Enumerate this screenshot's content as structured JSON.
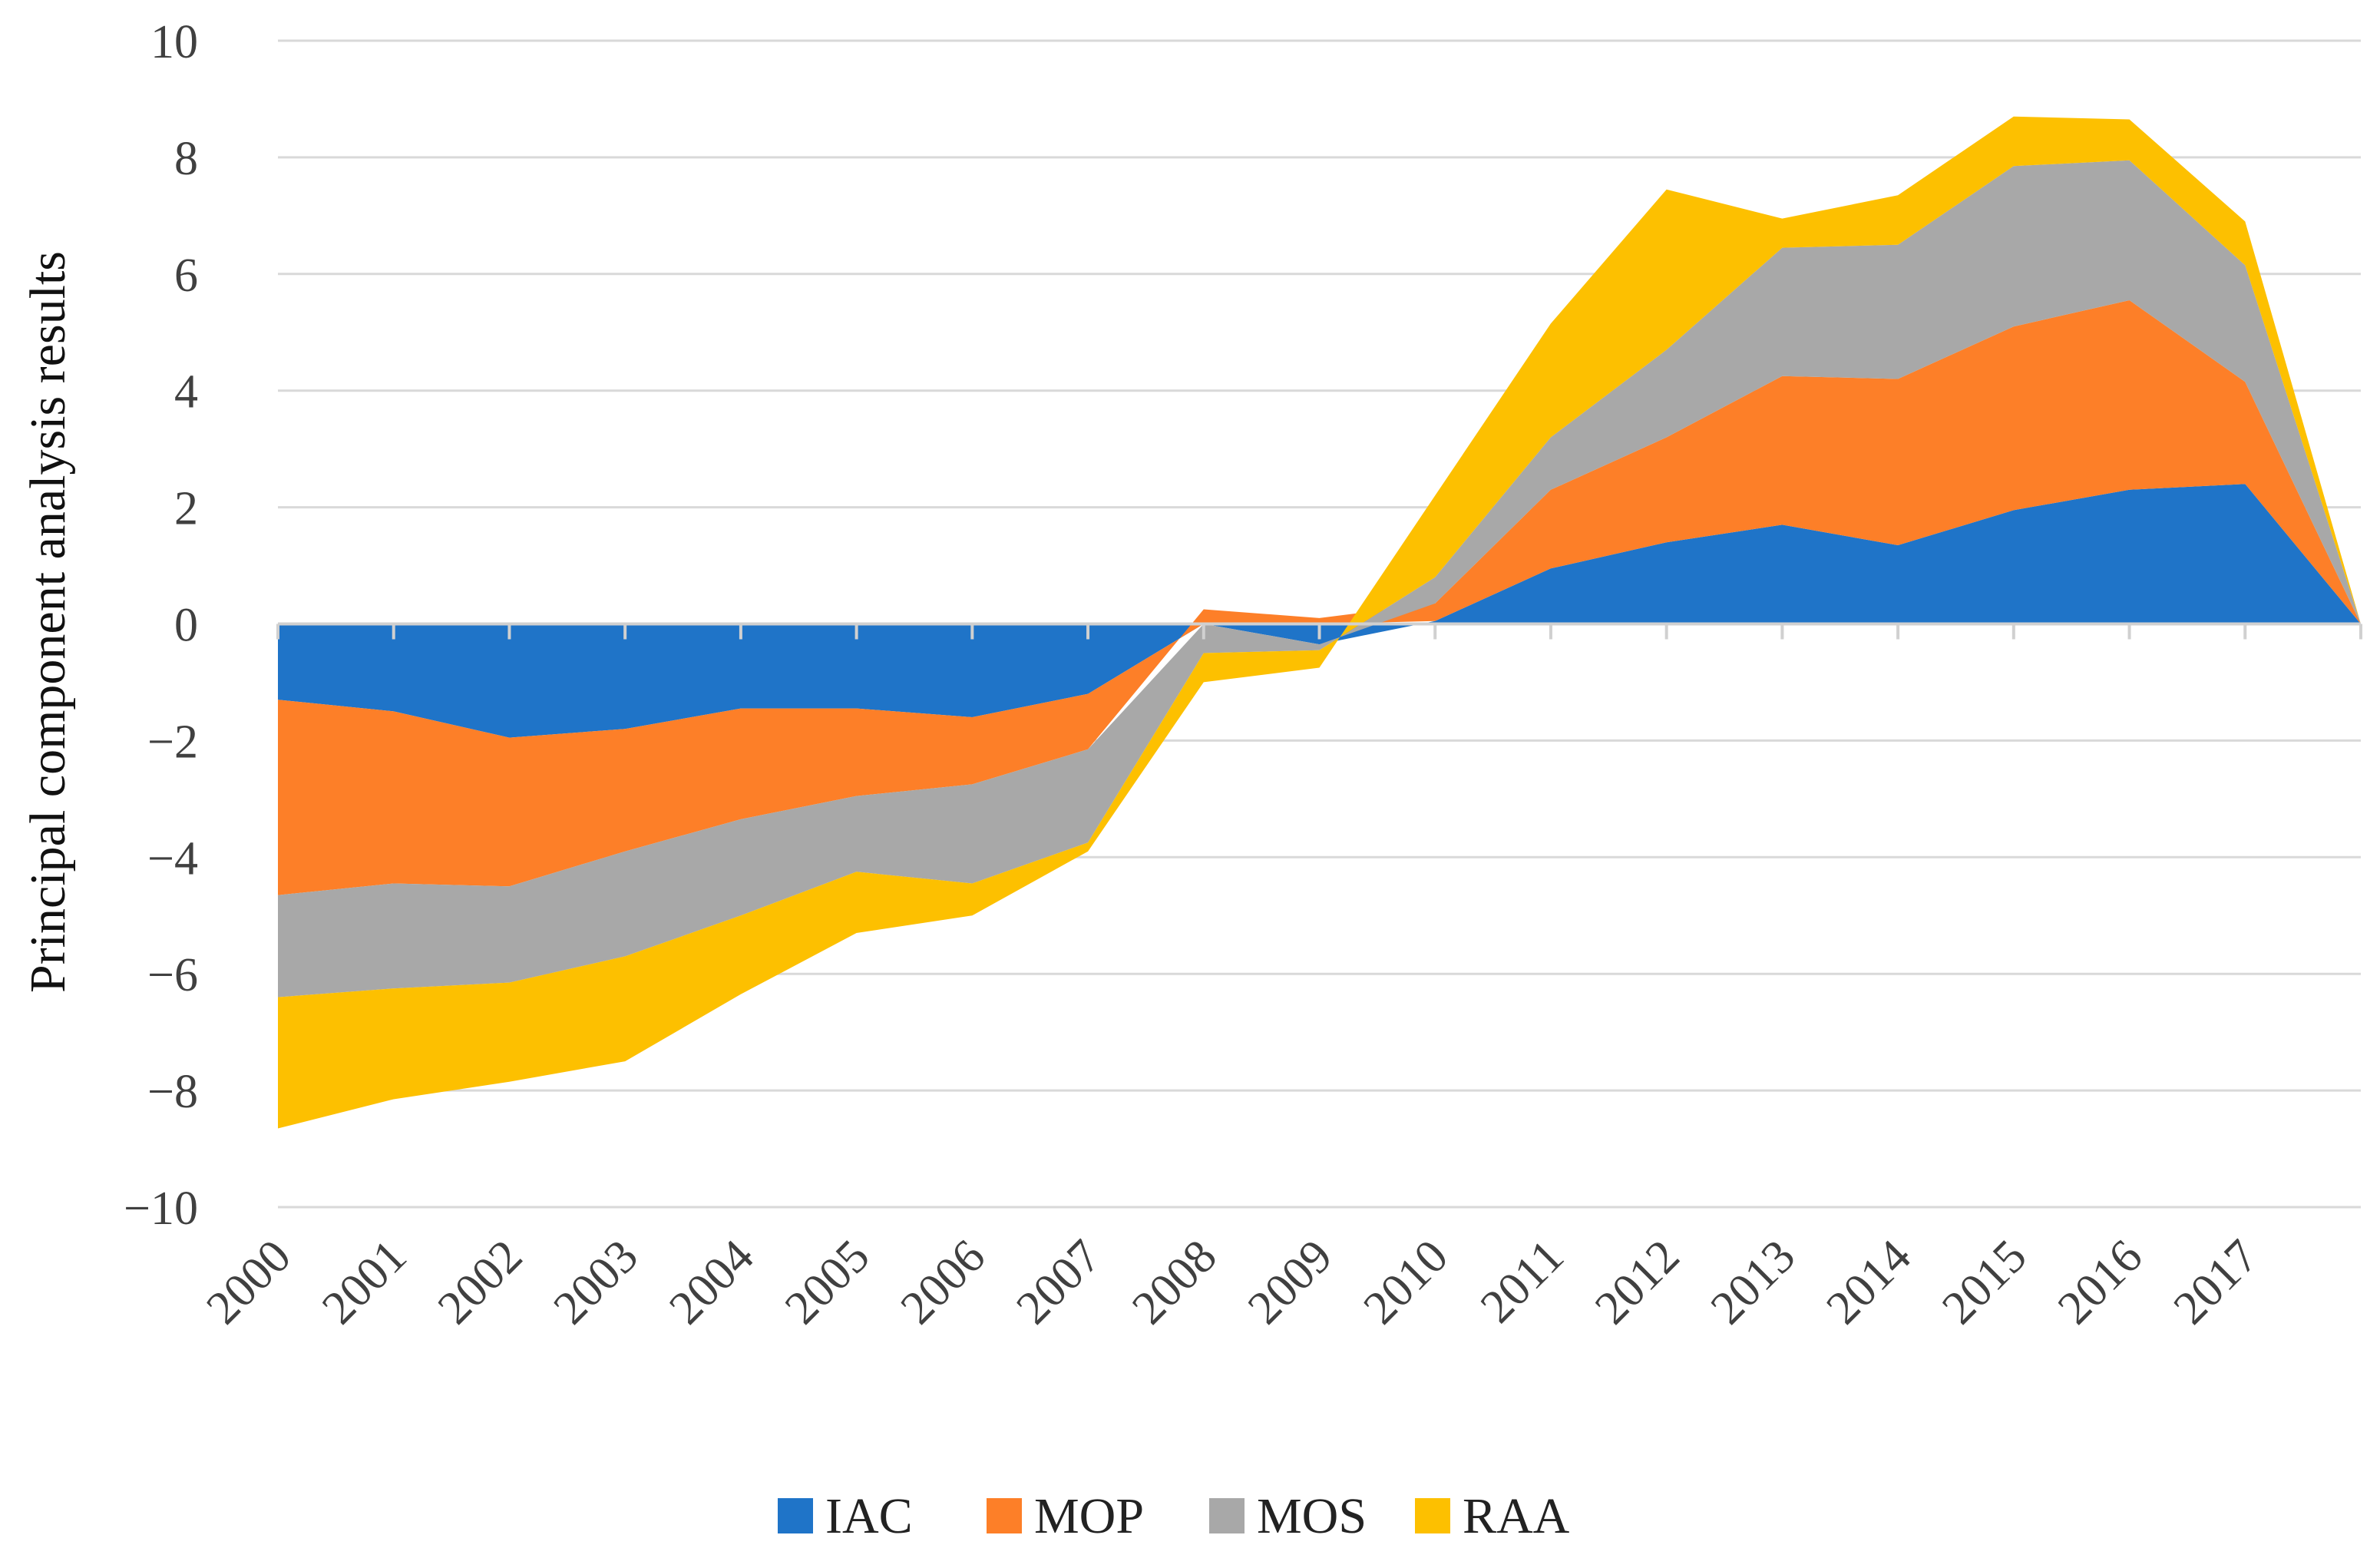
{
  "chart_data": {
    "type": "area",
    "stacked": true,
    "title": "",
    "xlabel": "",
    "ylabel": "Principal component analysis results",
    "ylim": [
      -10,
      10
    ],
    "yticks": [
      10,
      8,
      6,
      4,
      2,
      0,
      -2,
      -4,
      -6,
      -8,
      -10
    ],
    "ytick_labels": [
      "10",
      "8",
      "6",
      "4",
      "2",
      "0",
      "−2",
      "−4",
      "−6",
      "−8",
      "−10"
    ],
    "categories": [
      "2000",
      "2001",
      "2002",
      "2003",
      "2004",
      "2005",
      "2006",
      "2007",
      "2008",
      "2009",
      "2010",
      "2011",
      "2012",
      "2013",
      "2014",
      "2015",
      "2016",
      "2017",
      ""
    ],
    "grid": true,
    "legend_position": "bottom",
    "series": [
      {
        "name": "IAC",
        "color": "#1f74c8",
        "values": [
          -1.3,
          -1.5,
          -1.95,
          -1.8,
          -1.45,
          -1.45,
          -1.6,
          -1.2,
          0,
          -0.35,
          0.05,
          0.95,
          1.4,
          1.7,
          1.35,
          1.95,
          2.3,
          2.4,
          0
        ]
      },
      {
        "name": "MOP",
        "color": "#fd7f28",
        "values": [
          -3.35,
          -2.95,
          -2.55,
          -2.1,
          -1.9,
          -1.5,
          -1.15,
          -0.95,
          0.25,
          0.1,
          0.3,
          1.35,
          1.8,
          2.55,
          2.85,
          3.15,
          3.25,
          1.75,
          0
        ]
      },
      {
        "name": "MOS",
        "color": "#a8a8a8",
        "values": [
          -1.75,
          -1.8,
          -1.65,
          -1.8,
          -1.65,
          -1.3,
          -1.7,
          -1.6,
          -0.5,
          -0.1,
          0.45,
          0.9,
          1.5,
          2.2,
          2.3,
          2.75,
          2.4,
          2.0,
          0
        ]
      },
      {
        "name": "RAA",
        "color": "#fdc000",
        "values": [
          -2.25,
          -1.9,
          -1.7,
          -1.8,
          -1.35,
          -1.05,
          -0.55,
          -0.15,
          -0.5,
          -0.3,
          1.4,
          1.95,
          2.75,
          0.5,
          0.85,
          0.85,
          0.7,
          0.75,
          0
        ]
      }
    ]
  }
}
